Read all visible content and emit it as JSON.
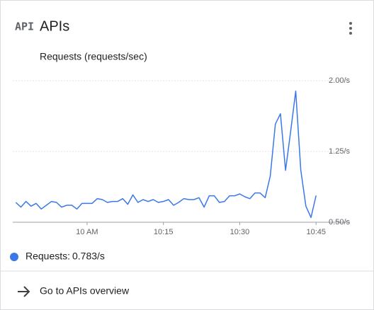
{
  "header": {
    "icon": "API",
    "title": "APIs"
  },
  "chart_data": {
    "type": "line",
    "title": "Requests (requests/sec)",
    "x": [
      -14,
      -13,
      -12,
      -11,
      -10,
      -9,
      -8,
      -7,
      -6,
      -5,
      -4,
      -3,
      -2,
      -1,
      0,
      1,
      2,
      3,
      4,
      5,
      6,
      7,
      8,
      9,
      10,
      11,
      12,
      13,
      14,
      15,
      16,
      17,
      18,
      19,
      20,
      21,
      22,
      23,
      24,
      25,
      26,
      27,
      28,
      29,
      30,
      31,
      32,
      33,
      34,
      35,
      36,
      37,
      38,
      39,
      40,
      41,
      42,
      43,
      44,
      45
    ],
    "series": [
      {
        "name": "Requests:",
        "color": "#3b78e7",
        "values": [
          0.71,
          0.66,
          0.72,
          0.67,
          0.7,
          0.64,
          0.68,
          0.72,
          0.71,
          0.66,
          0.68,
          0.68,
          0.64,
          0.7,
          0.7,
          0.7,
          0.75,
          0.74,
          0.71,
          0.72,
          0.72,
          0.75,
          0.69,
          0.79,
          0.71,
          0.74,
          0.72,
          0.74,
          0.71,
          0.72,
          0.74,
          0.68,
          0.71,
          0.75,
          0.74,
          0.74,
          0.76,
          0.66,
          0.78,
          0.78,
          0.71,
          0.72,
          0.78,
          0.78,
          0.8,
          0.77,
          0.75,
          0.81,
          0.81,
          0.76,
          0.99,
          1.54,
          1.65,
          1.05,
          1.46,
          1.89,
          1.05,
          0.67,
          0.55,
          0.783
        ],
        "current_value": 0.783,
        "current_value_label": "0.783/s"
      }
    ],
    "xlim": [
      -14.6,
      46.5
    ],
    "xticks": [
      {
        "value": 0,
        "label": "10 AM"
      },
      {
        "value": 15,
        "label": "10:15"
      },
      {
        "value": 30,
        "label": "10:30"
      },
      {
        "value": 45,
        "label": "10:45"
      }
    ],
    "ylim": [
      0.5,
      2.0
    ],
    "yticks": [
      {
        "value": 0.5,
        "label": "0.50/s"
      },
      {
        "value": 1.25,
        "label": "1.25/s"
      },
      {
        "value": 2.0,
        "label": "2.00/s"
      }
    ],
    "grid": true
  },
  "link": {
    "text": "Go to APIs overview"
  }
}
